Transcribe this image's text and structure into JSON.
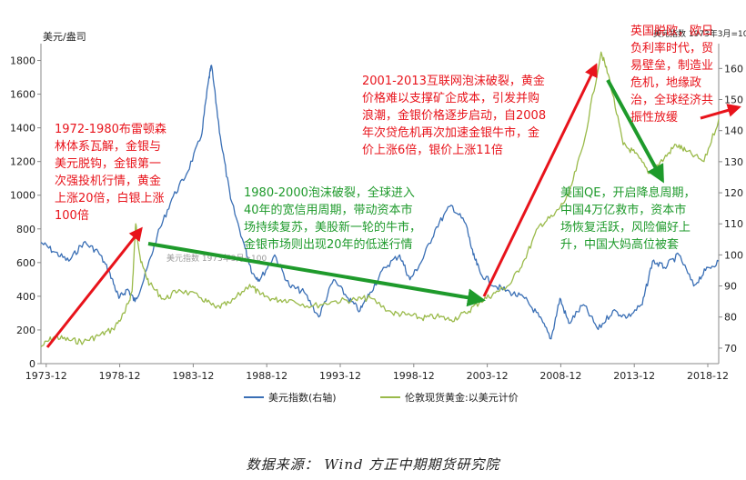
{
  "chart_data": {
    "type": "line",
    "left_axis": {
      "unit_label": "美元/盎司",
      "ylim": [
        0,
        1900
      ],
      "ticks": [
        "0",
        "200",
        "400",
        "600",
        "800",
        "1000",
        "1200",
        "1400",
        "1600",
        "1800"
      ]
    },
    "right_axis": {
      "ylim": [
        65,
        168
      ],
      "ticks": [
        "70",
        "80",
        "90",
        "100",
        "110",
        "120",
        "130",
        "140",
        "150",
        "160"
      ]
    },
    "x_ticks": [
      "1973-12",
      "1978-12",
      "1983-12",
      "1988-12",
      "1993-12",
      "1998-12",
      "2003-12",
      "2008-12",
      "2013-12",
      "2018-12"
    ],
    "x_range": [
      1973.6,
      2019.7
    ],
    "series": [
      {
        "name": "美元指数(右轴)",
        "axis": "right",
        "color": "#3a6fb5",
        "x": [
          1973.6,
          1974.5,
          1975.5,
          1976.5,
          1977.5,
          1978.3,
          1978.9,
          1979.5,
          1980.0,
          1980.6,
          1981.5,
          1982.5,
          1983.5,
          1984.5,
          1985.0,
          1985.2,
          1985.8,
          1986.5,
          1987.5,
          1988.0,
          1988.5,
          1989.5,
          1990.5,
          1991.5,
          1992.5,
          1993.5,
          1994.5,
          1995.3,
          1996.0,
          1997.0,
          1998.0,
          1998.7,
          1999.5,
          2000.5,
          2001.5,
          2002.5,
          2003.0,
          2003.5,
          2004.5,
          2005.5,
          2006.5,
          2007.5,
          2008.3,
          2008.9,
          2009.5,
          2010.5,
          2011.5,
          2012.5,
          2013.5,
          2014.5,
          2015.2,
          2016.0,
          2017.0,
          2018.0,
          2018.8,
          2019.7
        ],
        "values": [
          104,
          101,
          98,
          104,
          101,
          94,
          86,
          89,
          85,
          92,
          106,
          118,
          126,
          138,
          156,
          161,
          138,
          118,
          102,
          94,
          92,
          100,
          90,
          88,
          80,
          92,
          86,
          82,
          88,
          96,
          100,
          92,
          98,
          109,
          116,
          110,
          100,
          94,
          90,
          88,
          86,
          80,
          73,
          86,
          78,
          84,
          76,
          82,
          80,
          84,
          98,
          96,
          100,
          90,
          95,
          98
        ]
      },
      {
        "name": "伦敦现货黄金:以美元计价",
        "axis": "left",
        "color": "#9aba4a",
        "x": [
          1973.6,
          1974.5,
          1975.5,
          1976.5,
          1977.5,
          1978.5,
          1979.3,
          1979.8,
          1980.05,
          1980.4,
          1981.0,
          1982.0,
          1983.0,
          1984.5,
          1985.5,
          1986.5,
          1987.8,
          1988.5,
          1989.5,
          1990.5,
          1992.0,
          1993.5,
          1995.0,
          1996.0,
          1997.5,
          1998.5,
          1999.5,
          2000.5,
          2001.5,
          2002.5,
          2003.5,
          2004.5,
          2005.5,
          2006.5,
          2007.5,
          2008.5,
          2009.5,
          2010.5,
          2011.7,
          2012.3,
          2013.2,
          2014.0,
          2015.0,
          2016.0,
          2016.8,
          2017.5,
          2018.7,
          2019.7
        ],
        "values": [
          100,
          160,
          140,
          130,
          165,
          205,
          300,
          430,
          830,
          600,
          470,
          380,
          440,
          390,
          330,
          360,
          470,
          410,
          380,
          380,
          340,
          370,
          380,
          390,
          300,
          290,
          270,
          280,
          260,
          300,
          370,
          420,
          470,
          620,
          820,
          880,
          1000,
          1300,
          1850,
          1680,
          1300,
          1250,
          1130,
          1220,
          1300,
          1260,
          1200,
          1450
        ]
      }
    ],
    "legend": [
      {
        "label": "美元指数(右轴)",
        "color": "#3a6fb5"
      },
      {
        "label": "伦敦现货黄金:以美元计价",
        "color": "#9aba4a"
      }
    ],
    "annotations": [
      {
        "color": "red",
        "lines": [
          "1972-1980布雷顿森",
          "林体系瓦解，金银与",
          "美元脱钩，金银第一",
          "次强投机行情，黄金",
          "上涨20倍，白银上涨",
          "100倍"
        ]
      },
      {
        "color": "green",
        "lines": [
          "1980-2000泡沫破裂，全球进入",
          "40年的宽信用周期，带动资本市",
          "场持续复苏，美股新一轮的牛市，",
          "金银市场则出现20年的低迷行情"
        ]
      },
      {
        "color": "red",
        "lines": [
          "2001-2013互联网泡沫破裂，黄金",
          "价格难以支撑矿企成本，引发并购",
          "浪潮，金银价格逐步启动，自2008",
          "年次贷危机再次加速金银牛市，金",
          "价上涨6倍，银价上涨11倍"
        ]
      },
      {
        "color": "green",
        "lines": [
          "美国QE，开启降息周期，",
          "中国4万亿救市，资本市",
          "场恢复活跃，风险偏好上",
          "升，中国大妈高位被套"
        ]
      },
      {
        "color": "red",
        "lines": [
          "英国脱欧，欧日",
          "负利率时代，贸",
          "易壁垒，制造业",
          "危机，地缘政",
          "治，全球经济共",
          "振性放缓"
        ]
      }
    ],
    "tooltips": [
      "美元指数 1973年3月=100"
    ]
  },
  "source_text": "数据来源：  Wind  方正中期期货研究院"
}
